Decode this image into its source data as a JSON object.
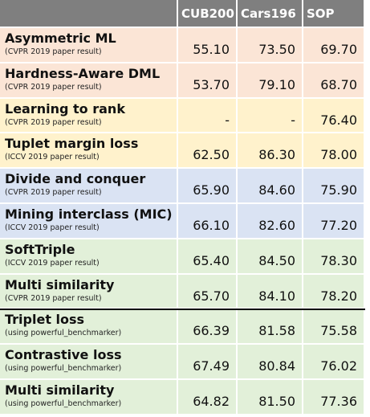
{
  "table": {
    "columns": [
      "CUB200",
      "Cars196",
      "SOP"
    ],
    "rows": [
      {
        "name": "Asymmetric ML",
        "note": "(CVPR 2019 paper result)",
        "values": [
          "55.10",
          "73.50",
          "69.70"
        ]
      },
      {
        "name": "Hardness-Aware DML",
        "note": "(CVPR 2019 paper result)",
        "values": [
          "53.70",
          "79.10",
          "68.70"
        ]
      },
      {
        "name": "Learning to rank",
        "note": "(CVPR 2019 paper result)",
        "values": [
          "-",
          "-",
          "76.40"
        ]
      },
      {
        "name": "Tuplet margin loss",
        "note": "(ICCV 2019 paper result)",
        "values": [
          "62.50",
          "86.30",
          "78.00"
        ]
      },
      {
        "name": "Divide and conquer",
        "note": "(CVPR 2019 paper result)",
        "values": [
          "65.90",
          "84.60",
          "75.90"
        ]
      },
      {
        "name": "Mining interclass (MIC)",
        "note": "(ICCV 2019 paper result)",
        "values": [
          "66.10",
          "82.60",
          "77.20"
        ]
      },
      {
        "name": "SoftTriple",
        "note": "(ICCV 2019 paper result)",
        "values": [
          "65.40",
          "84.50",
          "78.30"
        ]
      },
      {
        "name": "Multi similarity",
        "note": "(CVPR 2019 paper result)",
        "values": [
          "65.70",
          "84.10",
          "78.20"
        ]
      },
      {
        "name": "Triplet loss",
        "note": "(using powerful_benchmarker)",
        "values": [
          "66.39",
          "81.58",
          "75.58"
        ]
      },
      {
        "name": "Contrastive loss",
        "note": "(using powerful_benchmarker)",
        "values": [
          "67.49",
          "80.84",
          "76.02"
        ]
      },
      {
        "name": "Multi similarity",
        "note": "(using powerful_benchmarker)",
        "values": [
          "64.82",
          "81.50",
          "77.36"
        ]
      }
    ]
  }
}
